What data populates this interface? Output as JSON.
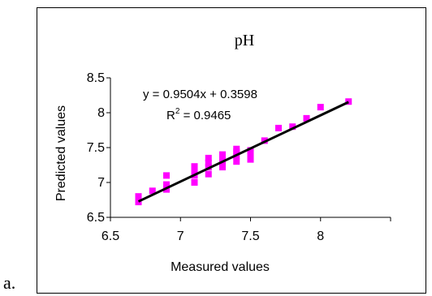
{
  "panel_label": "a.",
  "chart_data": {
    "type": "scatter",
    "title": "pH",
    "xlabel": "Measured values",
    "ylabel": "Predicted values",
    "xlim": [
      6.5,
      8.5
    ],
    "ylim": [
      6.5,
      8.5
    ],
    "x_ticks": [
      "6.5",
      "7",
      "7.5",
      "8"
    ],
    "x_tick_values": [
      6.5,
      7,
      7.5,
      8
    ],
    "y_ticks": [
      "6.5",
      "7",
      "7.5",
      "8",
      "8.5"
    ],
    "y_tick_values": [
      6.5,
      7,
      7.5,
      8,
      8.5
    ],
    "grid": false,
    "marker_color": "#ff00ff",
    "trendline_color": "#000000",
    "trendline": {
      "slope": 0.9504,
      "intercept": 0.3598,
      "x_start": 6.7,
      "x_end": 8.2
    },
    "equation_text": "y = 0.9504x + 0.3598",
    "r2_prefix": "R",
    "r2_superscript": "2",
    "r2_value_text": " = 0.9465",
    "points": [
      {
        "x": 6.7,
        "y": 6.72
      },
      {
        "x": 6.7,
        "y": 6.8
      },
      {
        "x": 6.8,
        "y": 6.88
      },
      {
        "x": 6.9,
        "y": 6.9
      },
      {
        "x": 6.9,
        "y": 6.97
      },
      {
        "x": 6.9,
        "y": 7.1
      },
      {
        "x": 7.1,
        "y": 7.0
      },
      {
        "x": 7.1,
        "y": 7.1
      },
      {
        "x": 7.1,
        "y": 7.16
      },
      {
        "x": 7.1,
        "y": 7.23
      },
      {
        "x": 7.2,
        "y": 7.12
      },
      {
        "x": 7.2,
        "y": 7.22
      },
      {
        "x": 7.2,
        "y": 7.28
      },
      {
        "x": 7.2,
        "y": 7.35
      },
      {
        "x": 7.3,
        "y": 7.22
      },
      {
        "x": 7.3,
        "y": 7.28
      },
      {
        "x": 7.3,
        "y": 7.35
      },
      {
        "x": 7.3,
        "y": 7.4
      },
      {
        "x": 7.4,
        "y": 7.3
      },
      {
        "x": 7.4,
        "y": 7.38
      },
      {
        "x": 7.4,
        "y": 7.44
      },
      {
        "x": 7.4,
        "y": 7.48
      },
      {
        "x": 7.5,
        "y": 7.33
      },
      {
        "x": 7.5,
        "y": 7.4
      },
      {
        "x": 7.5,
        "y": 7.46
      },
      {
        "x": 7.6,
        "y": 7.6
      },
      {
        "x": 7.7,
        "y": 7.78
      },
      {
        "x": 7.8,
        "y": 7.8
      },
      {
        "x": 7.9,
        "y": 7.92
      },
      {
        "x": 8.0,
        "y": 8.08
      },
      {
        "x": 8.2,
        "y": 8.16
      }
    ]
  }
}
